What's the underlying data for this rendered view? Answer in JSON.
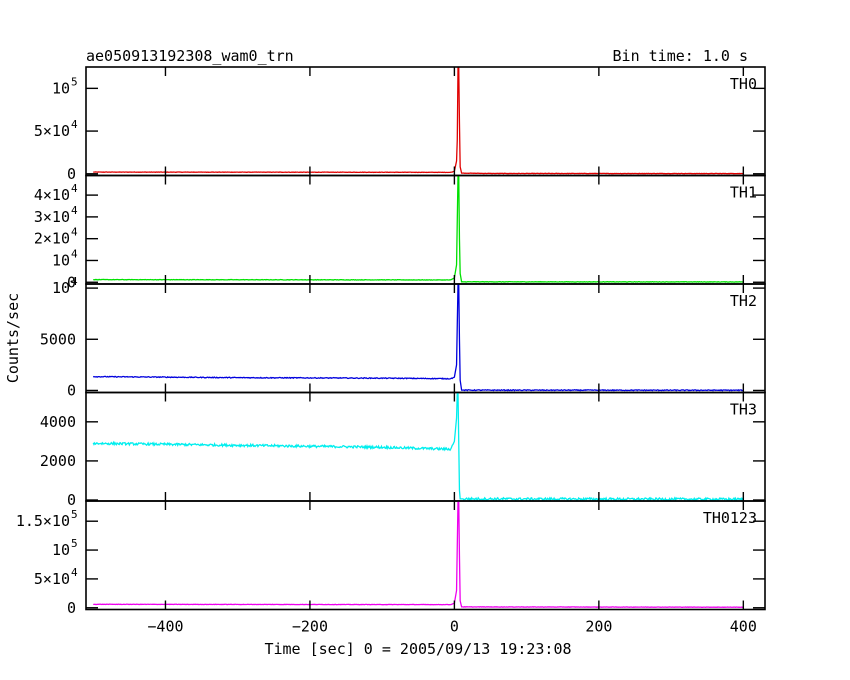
{
  "header": {
    "title": "ae050913192308_wam0_trn",
    "bin_time": "Bin time: 1.0 s"
  },
  "chart_data": {
    "type": "line",
    "xlabel": "Time [sec] 0 = 2005/09/13 19:23:08",
    "ylabel": "Counts/sec",
    "xlim": [
      -510,
      430
    ],
    "x_ticks": [
      -400,
      -200,
      0,
      200,
      400
    ],
    "x_tick_labels": [
      "−400",
      "−200",
      "0",
      "200",
      "400"
    ],
    "grid": false,
    "panels": [
      {
        "name": "TH0",
        "color": "#e00000",
        "ylim": [
          -2000,
          125000
        ],
        "ticks": [
          {
            "v": 0,
            "label": "0"
          },
          {
            "v": 50000,
            "label": "5×10",
            "exp": "4"
          },
          {
            "v": 100000,
            "label": "10",
            "exp": "5"
          }
        ],
        "points": [
          [
            -500,
            2000
          ],
          [
            -300,
            1900
          ],
          [
            -100,
            1800
          ],
          [
            -5,
            1700
          ],
          [
            0,
            3000
          ],
          [
            3,
            15000
          ],
          [
            4,
            40000
          ],
          [
            5,
            125000
          ],
          [
            6,
            125000
          ],
          [
            7,
            60000
          ],
          [
            8,
            8000
          ],
          [
            10,
            800
          ],
          [
            50,
            400
          ],
          [
            400,
            300
          ]
        ],
        "noise": 200
      },
      {
        "name": "TH1",
        "color": "#00e000",
        "ylim": [
          -800,
          49000
        ],
        "ticks": [
          {
            "v": 0,
            "label": "0"
          },
          {
            "v": 10000,
            "label": "10",
            "exp": "4"
          },
          {
            "v": 20000,
            "label": "2×10",
            "exp": "4"
          },
          {
            "v": 30000,
            "label": "3×10",
            "exp": "4"
          },
          {
            "v": 40000,
            "label": "4×10",
            "exp": "4"
          }
        ],
        "points": [
          [
            -500,
            1200
          ],
          [
            -300,
            1150
          ],
          [
            -100,
            1100
          ],
          [
            -5,
            1050
          ],
          [
            0,
            2000
          ],
          [
            3,
            8000
          ],
          [
            5,
            49000
          ],
          [
            6,
            49000
          ],
          [
            7,
            20000
          ],
          [
            8,
            4000
          ],
          [
            10,
            200
          ],
          [
            400,
            150
          ]
        ],
        "noise": 100
      },
      {
        "name": "TH2",
        "color": "#0000dd",
        "ylim": [
          -200,
          10400
        ],
        "ticks": [
          {
            "v": 0,
            "label": "0"
          },
          {
            "v": 5000,
            "label": "5000"
          },
          {
            "v": 10000,
            "label": "10",
            "exp": "4"
          }
        ],
        "points": [
          [
            -500,
            1350
          ],
          [
            -300,
            1250
          ],
          [
            -100,
            1200
          ],
          [
            -5,
            1150
          ],
          [
            0,
            1300
          ],
          [
            3,
            2500
          ],
          [
            5,
            10400
          ],
          [
            6,
            10400
          ],
          [
            7,
            5000
          ],
          [
            8,
            1000
          ],
          [
            10,
            30
          ],
          [
            400,
            20
          ]
        ],
        "noise": 40
      },
      {
        "name": "TH3",
        "color": "#00eeee",
        "ylim": [
          -50,
          5500
        ],
        "ticks": [
          {
            "v": 0,
            "label": "0"
          },
          {
            "v": 2000,
            "label": "2000"
          },
          {
            "v": 4000,
            "label": "4000"
          }
        ],
        "points": [
          [
            -500,
            2900
          ],
          [
            -300,
            2800
          ],
          [
            -100,
            2700
          ],
          [
            -5,
            2600
          ],
          [
            0,
            3000
          ],
          [
            3,
            4200
          ],
          [
            4,
            5500
          ],
          [
            5,
            5500
          ],
          [
            6,
            3000
          ],
          [
            7,
            500
          ],
          [
            8,
            60
          ],
          [
            400,
            40
          ]
        ],
        "noise": 60
      },
      {
        "name": "TH0123",
        "color": "#ee00ee",
        "ylim": [
          -3000,
          185000
        ],
        "ticks": [
          {
            "v": 0,
            "label": "0"
          },
          {
            "v": 50000,
            "label": "5×10",
            "exp": "4"
          },
          {
            "v": 100000,
            "label": "10",
            "exp": "5"
          },
          {
            "v": 150000,
            "label": "1.5×10",
            "exp": "5"
          }
        ],
        "points": [
          [
            -500,
            6000
          ],
          [
            -300,
            5800
          ],
          [
            -100,
            5600
          ],
          [
            -5,
            5500
          ],
          [
            0,
            8000
          ],
          [
            3,
            30000
          ],
          [
            5,
            185000
          ],
          [
            6,
            185000
          ],
          [
            7,
            90000
          ],
          [
            8,
            12000
          ],
          [
            10,
            1500
          ],
          [
            400,
            1000
          ]
        ],
        "noise": 300
      }
    ]
  }
}
